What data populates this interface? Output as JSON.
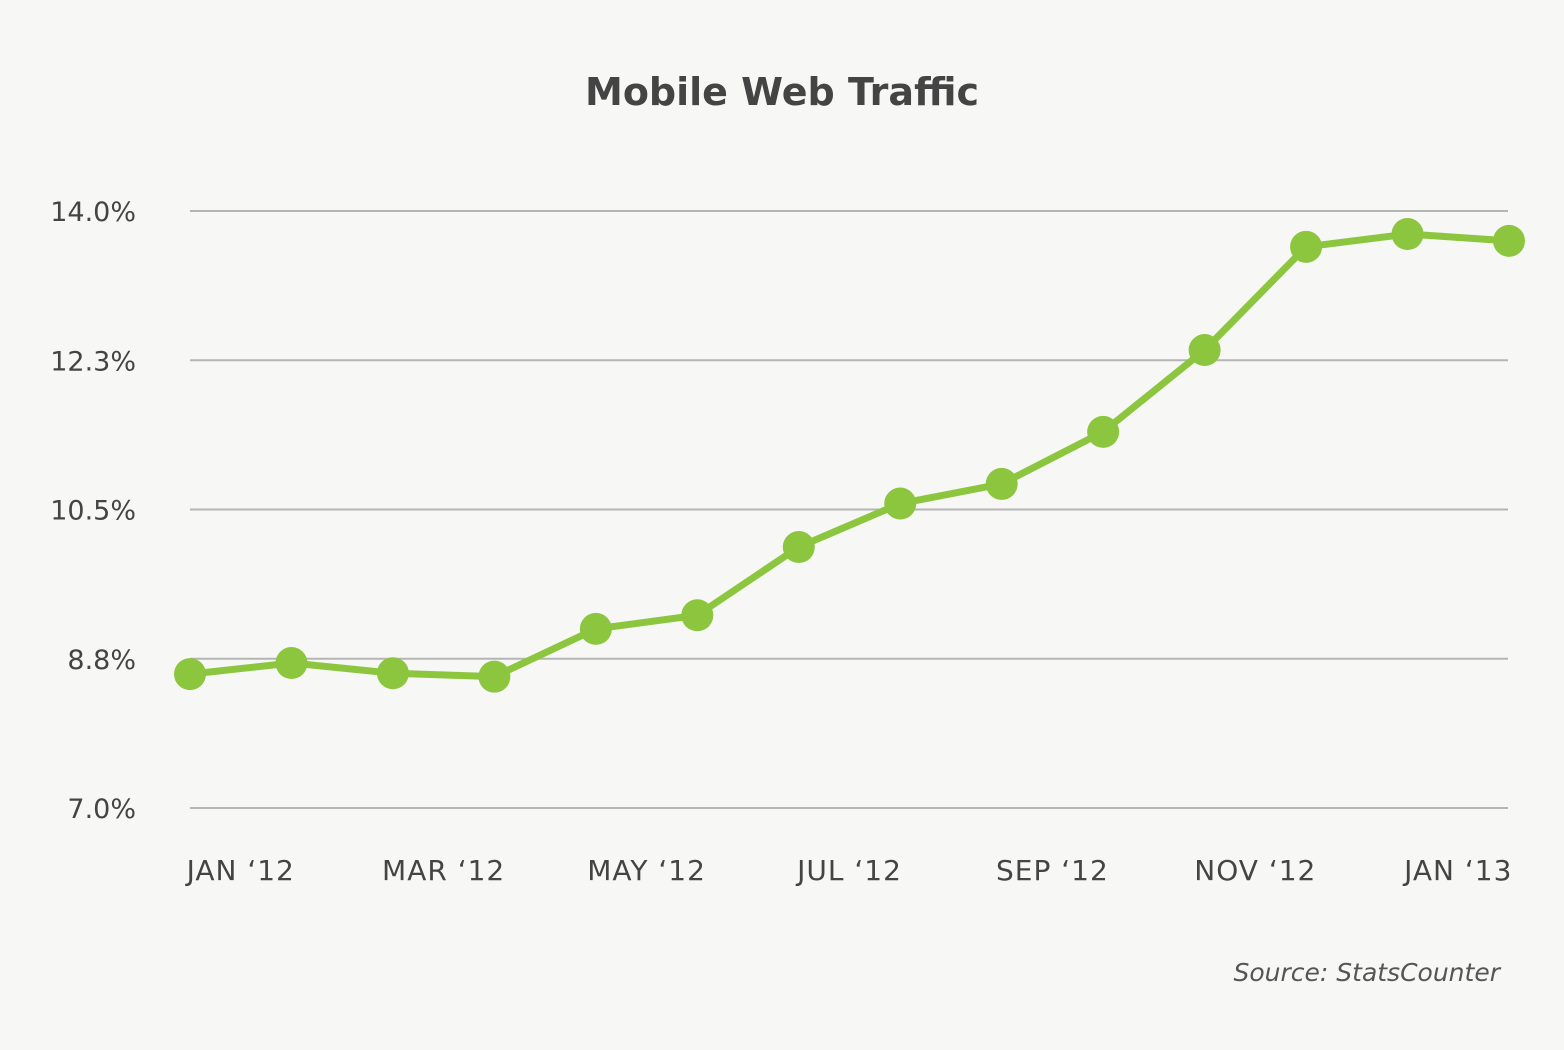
{
  "chart_data": {
    "type": "line",
    "title": "Mobile Web Traffic",
    "xlabel": "",
    "ylabel": "",
    "source": "Source: StatsCounter",
    "x": [
      "Jan '12",
      "Feb '12",
      "Mar '12",
      "Apr '12",
      "May '12",
      "Jun '12",
      "Jul '12",
      "Aug '12",
      "Sep '12",
      "Oct '12",
      "Nov '12",
      "Dec '12",
      "Jan '13",
      "Feb '13"
    ],
    "x_tick_labels": [
      "JAN ‘12",
      "MAR ‘12",
      "MAY ‘12",
      "JUL ‘12",
      "SEP ‘12",
      "NOV ‘12",
      "JAN ‘13"
    ],
    "y_tick_labels": [
      "14.0%",
      "12.3%",
      "10.5%",
      "8.8%",
      "7.0%"
    ],
    "y_ticks": [
      14.0,
      12.25,
      10.5,
      8.75,
      7.0
    ],
    "ylim": [
      7.0,
      14.0
    ],
    "grid": true,
    "series": [
      {
        "name": "Mobile Web Traffic",
        "color": "#8cc63f",
        "values": [
          8.57,
          8.7,
          8.58,
          8.54,
          9.1,
          9.26,
          10.06,
          10.57,
          10.8,
          11.41,
          12.37,
          13.58,
          13.73,
          13.65
        ]
      }
    ]
  }
}
